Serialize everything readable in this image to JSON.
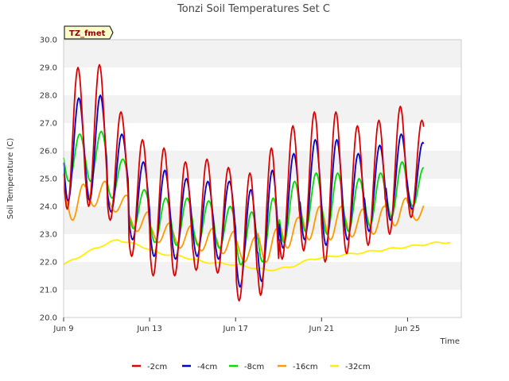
{
  "chart_data": {
    "type": "line",
    "title": "Tonzi Soil Temperatures Set C",
    "xlabel": "Time",
    "ylabel": "Soil Temperature (C)",
    "ylim": [
      20.0,
      30.0
    ],
    "yticks": [
      "20.0",
      "21.0",
      "22.0",
      "23.0",
      "24.0",
      "25.0",
      "26.0",
      "27.0",
      "28.0",
      "29.0",
      "30.0"
    ],
    "xlim_day": [
      9.0,
      27.5
    ],
    "xticks": [
      {
        "label": "Jun 9",
        "day": 9
      },
      {
        "label": "Jun 13",
        "day": 13
      },
      {
        "label": "Jun 17",
        "day": 17
      },
      {
        "label": "Jun 21",
        "day": 21
      },
      {
        "label": "Jun 25",
        "day": 25
      }
    ],
    "annotation": "TZ_fmet",
    "grid": "horizontal bands",
    "legend_position": "bottom",
    "series": [
      {
        "name": "-2cm",
        "color": "#dd0000",
        "peak_hour": 16,
        "daily_max": [
          29.0,
          29.1,
          27.4,
          26.4,
          26.1,
          25.6,
          25.7,
          25.4,
          25.2,
          26.1,
          26.9,
          27.4,
          27.4,
          26.9,
          27.1,
          27.6,
          27.1
        ],
        "daily_min": [
          23.9,
          24.0,
          23.5,
          22.2,
          21.5,
          21.5,
          21.7,
          21.6,
          20.6,
          20.8,
          22.1,
          22.4,
          22.0,
          22.3,
          22.6,
          23.0,
          23.6
        ]
      },
      {
        "name": "-4cm",
        "color": "#0000cc",
        "peak_hour": 17,
        "daily_max": [
          27.9,
          28.0,
          26.6,
          25.6,
          25.3,
          25.0,
          24.9,
          24.9,
          24.6,
          25.3,
          25.9,
          26.4,
          26.4,
          25.9,
          26.2,
          26.6,
          26.3
        ],
        "daily_min": [
          24.2,
          24.2,
          23.8,
          22.8,
          22.2,
          22.1,
          22.2,
          22.1,
          21.1,
          21.3,
          22.5,
          22.8,
          22.6,
          22.8,
          23.1,
          23.5,
          23.9
        ]
      },
      {
        "name": "-8cm",
        "color": "#00dd00",
        "peak_hour": 18,
        "daily_max": [
          26.6,
          26.7,
          25.7,
          24.6,
          24.3,
          24.3,
          24.2,
          24.0,
          23.8,
          24.3,
          24.9,
          25.2,
          25.2,
          25.0,
          25.2,
          25.6,
          25.4
        ],
        "daily_min": [
          24.9,
          24.9,
          24.3,
          23.2,
          22.7,
          22.6,
          22.6,
          22.5,
          21.9,
          22.0,
          22.7,
          23.1,
          23.0,
          23.1,
          23.3,
          23.6,
          24.0
        ]
      },
      {
        "name": "-16cm",
        "color": "#ff9900",
        "peak_hour": 22,
        "daily_max": [
          24.8,
          24.9,
          24.4,
          23.8,
          23.4,
          23.3,
          23.2,
          23.1,
          22.9,
          23.2,
          23.6,
          24.0,
          24.0,
          23.9,
          24.0,
          24.3,
          24.2
        ],
        "daily_min": [
          23.5,
          24.0,
          23.8,
          23.1,
          22.7,
          22.5,
          22.4,
          22.3,
          22.0,
          22.0,
          22.5,
          22.8,
          22.8,
          22.9,
          23.0,
          23.3,
          23.5
        ]
      },
      {
        "name": "-32cm",
        "color": "#ffee00",
        "daily_trend": {
          "day": [
            9.0,
            10.5,
            11.5,
            12.5,
            13.5,
            14.5,
            15.5,
            17.0,
            18.5,
            19.5,
            20.5,
            21.5,
            22.5,
            23.5,
            24.5,
            25.5,
            26.5,
            27.0
          ],
          "value": [
            21.9,
            22.5,
            22.8,
            22.6,
            22.3,
            22.2,
            22.0,
            21.9,
            21.7,
            21.8,
            22.1,
            22.2,
            22.3,
            22.4,
            22.5,
            22.6,
            22.7,
            22.7
          ]
        }
      }
    ]
  }
}
